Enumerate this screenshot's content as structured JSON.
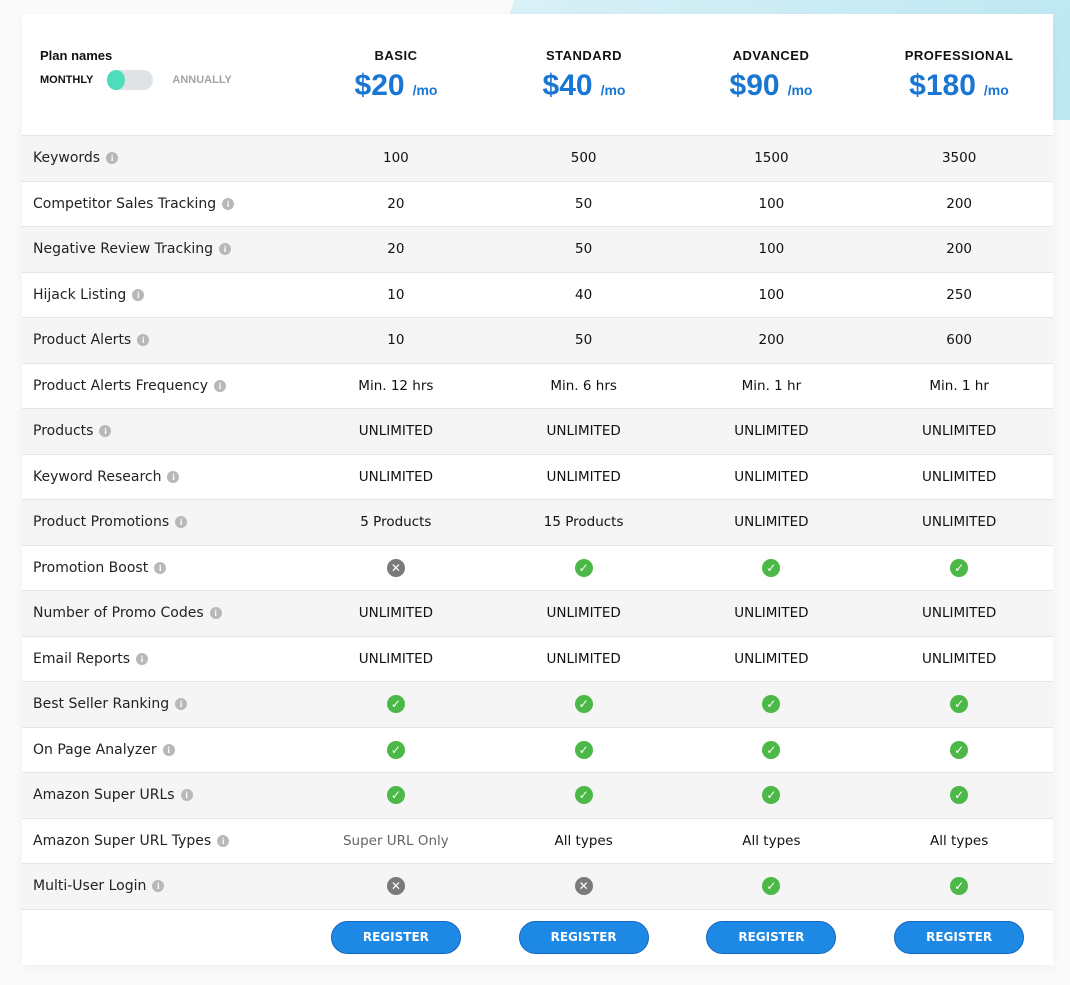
{
  "header": {
    "plan_names_label": "Plan names",
    "monthly_label": "MONTHLY",
    "annually_label": "ANNUALLY",
    "billing_toggle": "monthly"
  },
  "plans": [
    {
      "name": "BASIC",
      "price": "$20",
      "per": "/mo",
      "button": "REGISTER"
    },
    {
      "name": "STANDARD",
      "price": "$40",
      "per": "/mo",
      "button": "REGISTER"
    },
    {
      "name": "ADVANCED",
      "price": "$90",
      "per": "/mo",
      "button": "REGISTER"
    },
    {
      "name": "PROFESSIONAL",
      "price": "$180",
      "per": "/mo",
      "button": "REGISTER"
    }
  ],
  "info_icon": "i",
  "icons": {
    "check": "✓",
    "cross": "✕"
  },
  "colors": {
    "accent": "#1976d2",
    "button": "#1e88e5",
    "check": "#4cb847",
    "cross": "#7a7a7a",
    "toggle": "#4fdcb8"
  },
  "features": [
    {
      "name": "Keywords",
      "values": [
        "100",
        "500",
        "1500",
        "3500"
      ]
    },
    {
      "name": "Competitor Sales Tracking",
      "values": [
        "20",
        "50",
        "100",
        "200"
      ]
    },
    {
      "name": "Negative Review Tracking",
      "values": [
        "20",
        "50",
        "100",
        "200"
      ]
    },
    {
      "name": "Hijack Listing",
      "values": [
        "10",
        "40",
        "100",
        "250"
      ]
    },
    {
      "name": "Product Alerts",
      "values": [
        "10",
        "50",
        "200",
        "600"
      ]
    },
    {
      "name": "Product Alerts Frequency",
      "values": [
        "Min. 12 hrs",
        "Min. 6 hrs",
        "Min. 1 hr",
        "Min. 1 hr"
      ]
    },
    {
      "name": "Products",
      "values": [
        "UNLIMITED",
        "UNLIMITED",
        "UNLIMITED",
        "UNLIMITED"
      ]
    },
    {
      "name": "Keyword Research",
      "values": [
        "UNLIMITED",
        "UNLIMITED",
        "UNLIMITED",
        "UNLIMITED"
      ]
    },
    {
      "name": "Product Promotions",
      "values": [
        "5 Products",
        "15 Products",
        "UNLIMITED",
        "UNLIMITED"
      ]
    },
    {
      "name": "Promotion Boost",
      "values": [
        "cross",
        "check",
        "check",
        "check"
      ]
    },
    {
      "name": "Number of Promo Codes",
      "values": [
        "UNLIMITED",
        "UNLIMITED",
        "UNLIMITED",
        "UNLIMITED"
      ]
    },
    {
      "name": "Email Reports",
      "values": [
        "UNLIMITED",
        "UNLIMITED",
        "UNLIMITED",
        "UNLIMITED"
      ]
    },
    {
      "name": "Best Seller Ranking",
      "values": [
        "check",
        "check",
        "check",
        "check"
      ]
    },
    {
      "name": "On Page Analyzer",
      "values": [
        "check",
        "check",
        "check",
        "check"
      ]
    },
    {
      "name": "Amazon Super URLs",
      "values": [
        "check",
        "check",
        "check",
        "check"
      ]
    },
    {
      "name": "Amazon Super URL Types",
      "values": [
        "Super URL Only",
        "All types",
        "All types",
        "All types"
      ]
    },
    {
      "name": "Multi-User Login",
      "values": [
        "cross",
        "cross",
        "check",
        "check"
      ]
    }
  ]
}
